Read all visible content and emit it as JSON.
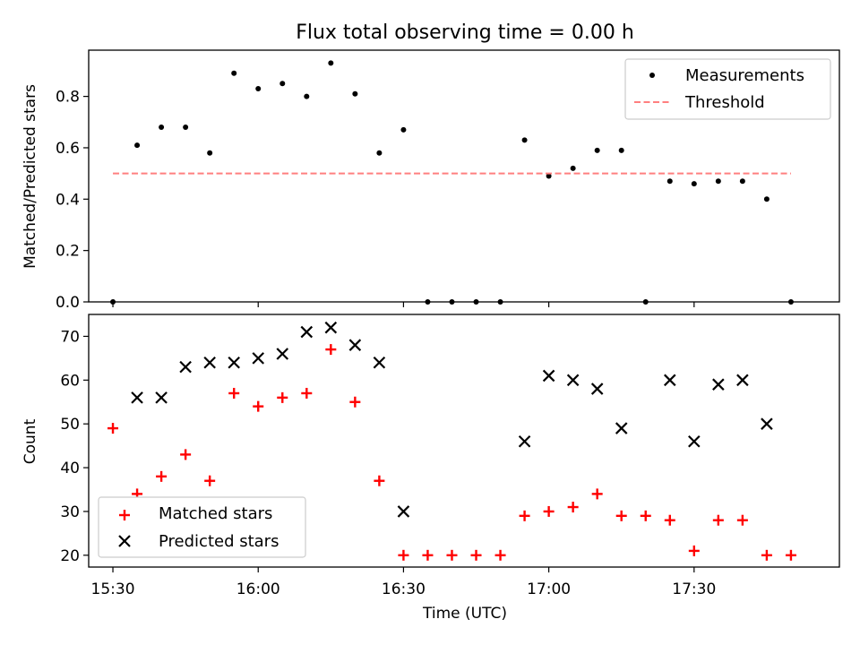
{
  "figure_title": "Flux total observing time = 0.00 h",
  "chart_data": [
    {
      "type": "scatter",
      "title": "Flux total observing time = 0.00 h",
      "xlabel": "",
      "ylabel": "Matched/Predicted stars",
      "xlim": [
        "15:25",
        "18:00"
      ],
      "ylim": [
        0,
        0.98
      ],
      "yticks": [
        0.0,
        0.2,
        0.4,
        0.6,
        0.8
      ],
      "ytick_labels": [
        "0.0",
        "0.2",
        "0.4",
        "0.6",
        "0.8"
      ],
      "grid": false,
      "legend": "top-right",
      "series": [
        {
          "name": "Measurements",
          "marker": "dot",
          "color": "#000000",
          "x": [
            "15:30",
            "15:35",
            "15:40",
            "15:45",
            "15:50",
            "15:55",
            "16:00",
            "16:05",
            "16:10",
            "16:15",
            "16:20",
            "16:25",
            "16:30",
            "16:35",
            "16:40",
            "16:45",
            "16:50",
            "16:55",
            "17:00",
            "17:05",
            "17:10",
            "17:15",
            "17:20",
            "17:25",
            "17:30",
            "17:35",
            "17:40",
            "17:45",
            "17:50"
          ],
          "y": [
            0.0,
            0.61,
            0.68,
            0.68,
            0.58,
            0.89,
            0.83,
            0.85,
            0.8,
            0.93,
            0.81,
            0.58,
            0.67,
            0.0,
            0.0,
            0.0,
            0.0,
            0.63,
            0.49,
            0.52,
            0.59,
            0.59,
            0.0,
            0.47,
            0.46,
            0.47,
            0.47,
            0.4,
            0.0
          ]
        },
        {
          "name": "Threshold",
          "style": "dashed",
          "color": "#ff7f7f",
          "x": [
            "15:30",
            "17:50"
          ],
          "y": [
            0.5,
            0.5
          ]
        }
      ]
    },
    {
      "type": "scatter",
      "title": "",
      "xlabel": "Time (UTC)",
      "ylabel": "Count",
      "xlim": [
        "15:25",
        "18:00"
      ],
      "ylim": [
        17.3,
        75
      ],
      "xticks": [
        "15:30",
        "16:00",
        "16:30",
        "17:00",
        "17:30"
      ],
      "xtick_labels": [
        "15:30",
        "16:00",
        "16:30",
        "17:00",
        "17:30"
      ],
      "yticks": [
        20,
        30,
        40,
        50,
        60,
        70
      ],
      "ytick_labels": [
        "20",
        "30",
        "40",
        "50",
        "60",
        "70"
      ],
      "grid": false,
      "legend": "bottom-left",
      "series": [
        {
          "name": "Matched stars",
          "marker": "plus",
          "color": "#ff0000",
          "x": [
            "15:30",
            "15:35",
            "15:40",
            "15:45",
            "15:50",
            "15:55",
            "16:00",
            "16:05",
            "16:10",
            "16:15",
            "16:20",
            "16:25",
            "16:30",
            "16:35",
            "16:40",
            "16:45",
            "16:50",
            "16:55",
            "17:00",
            "17:05",
            "17:10",
            "17:15",
            "17:20",
            "17:25",
            "17:30",
            "17:35",
            "17:40",
            "17:45",
            "17:50"
          ],
          "y": [
            49,
            34,
            38,
            43,
            37,
            57,
            54,
            56,
            57,
            67,
            55,
            37,
            20,
            20,
            20,
            20,
            20,
            29,
            30,
            31,
            34,
            29,
            29,
            28,
            21,
            28,
            28,
            20,
            20
          ]
        },
        {
          "name": "Predicted stars",
          "marker": "x",
          "color": "#000000",
          "x": [
            "15:35",
            "15:40",
            "15:45",
            "15:50",
            "15:55",
            "16:00",
            "16:05",
            "16:10",
            "16:15",
            "16:20",
            "16:25",
            "16:30",
            "16:55",
            "17:00",
            "17:05",
            "17:10",
            "17:15",
            "17:25",
            "17:30",
            "17:35",
            "17:40",
            "17:45"
          ],
          "y": [
            56,
            56,
            63,
            64,
            64,
            65,
            66,
            71,
            72,
            68,
            64,
            30,
            46,
            61,
            60,
            58,
            49,
            60,
            46,
            59,
            60,
            50
          ]
        }
      ]
    }
  ]
}
